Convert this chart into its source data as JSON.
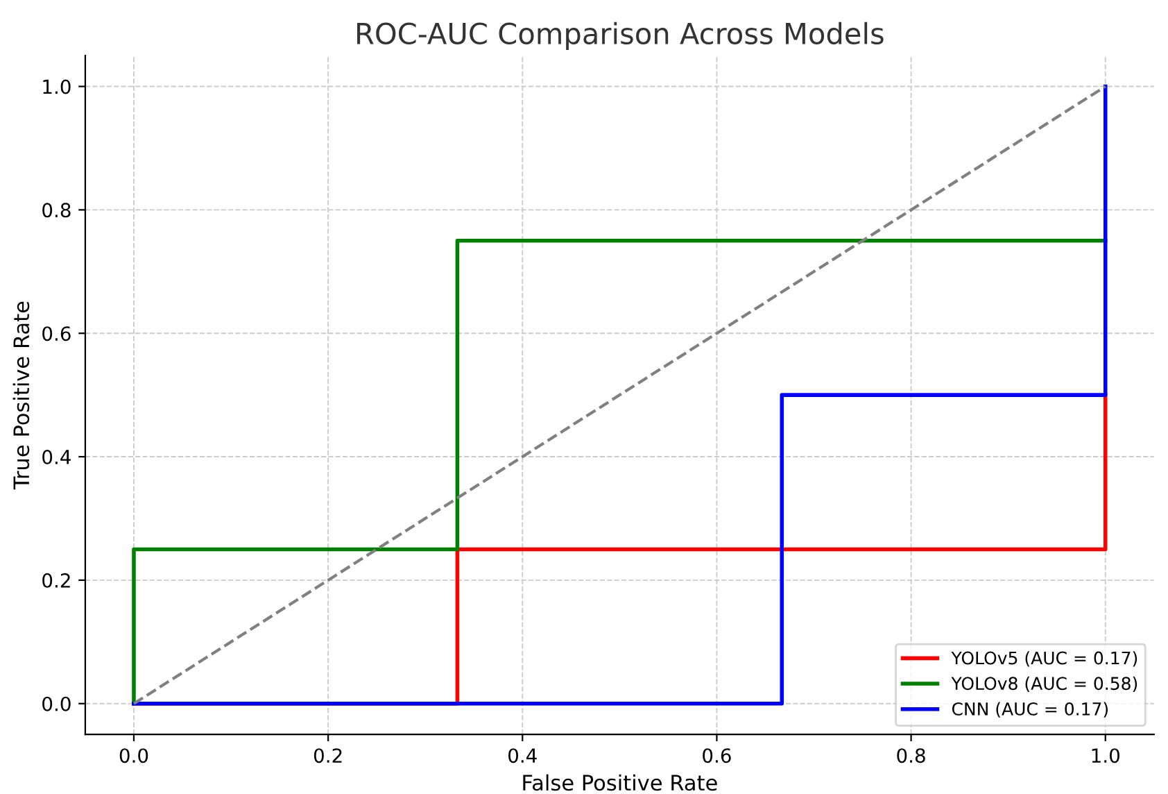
{
  "chart_data": {
    "type": "line",
    "title": "ROC-AUC Comparison Across Models",
    "xlabel": "False Positive Rate",
    "ylabel": "True Positive Rate",
    "xlim": [
      -0.05,
      1.05
    ],
    "ylim": [
      -0.05,
      1.05
    ],
    "xticks": [
      {
        "value": 0,
        "label": "0.0"
      },
      0.2,
      0.4,
      0.6,
      0.8,
      {
        "value": 1,
        "label": "1.0"
      }
    ],
    "yticks": [
      {
        "value": 0,
        "label": "0.0"
      },
      0.2,
      0.4,
      0.6,
      0.8,
      {
        "value": 1,
        "label": "1.0"
      }
    ],
    "grid": true,
    "legend": "bottom right",
    "line_style": "solid",
    "marker": "none",
    "series": [
      {
        "name": "YOLOv5 (AUC = 0.17)",
        "color": "#ff0000",
        "x": [
          0,
          0.333,
          0.333,
          1,
          1
        ],
        "values": [
          0,
          0,
          0.25,
          0.25,
          0.5
        ]
      },
      {
        "name": "YOLOv8 (AUC = 0.58)",
        "color": "#008000",
        "x": [
          0,
          0,
          0.333,
          0.333,
          1
        ],
        "values": [
          0,
          0.25,
          0.25,
          0.75,
          0.75
        ]
      },
      {
        "name": "CNN (AUC = 0.17)",
        "color": "#0000ff",
        "x": [
          0,
          0.667,
          0.667,
          1,
          1
        ],
        "values": [
          0,
          0,
          0.5,
          0.5,
          1
        ]
      },
      {
        "color": "#808080",
        "line_style": "dashed",
        "x": [
          0,
          1
        ],
        "values": [
          0,
          1
        ]
      }
    ]
  }
}
